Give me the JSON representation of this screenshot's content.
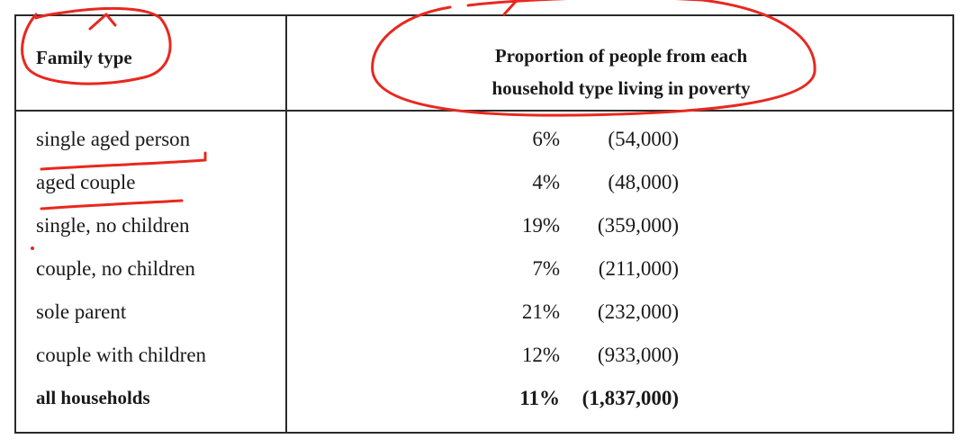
{
  "table": {
    "header": {
      "family_type": "Family type",
      "proportion_line1": "Proportion of people from each",
      "proportion_line2": "household type living in poverty"
    },
    "rows": [
      {
        "family": "single aged person",
        "percent": "6%",
        "count": "(54,000)"
      },
      {
        "family": "aged couple",
        "percent": "4%",
        "count": "(48,000)"
      },
      {
        "family": "single, no children",
        "percent": "19%",
        "count": "(359,000)"
      },
      {
        "family": "couple, no children",
        "percent": "7%",
        "count": "(211,000)"
      },
      {
        "family": "sole parent",
        "percent": "21%",
        "count": "(232,000)"
      },
      {
        "family": "couple with children",
        "percent": "12%",
        "count": "(933,000)"
      },
      {
        "family": "all households",
        "percent": "11%",
        "count": "(1,837,000)"
      }
    ]
  },
  "colors": {
    "annotation": "#e8281e",
    "border": "#2a2a2a"
  }
}
